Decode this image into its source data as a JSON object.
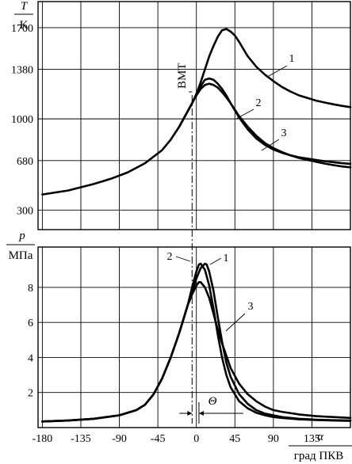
{
  "chart_data": [
    {
      "type": "line",
      "ylabel_top": "T",
      "ylabel_bottom": "K",
      "ylim": [
        150,
        1900
      ],
      "xlim": [
        -185,
        180
      ],
      "yticks": [
        300,
        680,
        1000,
        1380,
        1700
      ],
      "ytick_labels": [
        "300",
        "680",
        "1000",
        "1380",
        "1700"
      ],
      "grid": true,
      "annotation": "ВМТ",
      "series": [
        {
          "name": "1",
          "x": [
            -180,
            -150,
            -120,
            -100,
            -80,
            -60,
            -40,
            -30,
            -20,
            -10,
            -5,
            0,
            5,
            10,
            15,
            20,
            25,
            30,
            35,
            40,
            45,
            50,
            60,
            70,
            80,
            90,
            100,
            110,
            120,
            130,
            140,
            150,
            160,
            170,
            180
          ],
          "y": [
            420,
            450,
            500,
            540,
            590,
            660,
            760,
            840,
            940,
            1060,
            1120,
            1190,
            1280,
            1380,
            1480,
            1560,
            1630,
            1680,
            1690,
            1670,
            1640,
            1590,
            1480,
            1400,
            1340,
            1290,
            1245,
            1210,
            1180,
            1160,
            1140,
            1125,
            1112,
            1100,
            1090
          ]
        },
        {
          "name": "2",
          "x": [
            -20,
            -10,
            -5,
            0,
            5,
            10,
            15,
            20,
            25,
            30,
            35,
            40,
            50,
            60,
            70,
            80,
            90,
            100,
            110,
            120,
            130,
            140,
            150,
            160,
            170,
            180
          ],
          "y": [
            940,
            1060,
            1120,
            1190,
            1250,
            1300,
            1310,
            1300,
            1270,
            1230,
            1180,
            1120,
            1010,
            920,
            850,
            800,
            765,
            740,
            720,
            705,
            695,
            685,
            675,
            668,
            660,
            655
          ]
        },
        {
          "name": "3",
          "x": [
            -20,
            -10,
            -5,
            0,
            5,
            10,
            15,
            20,
            25,
            30,
            35,
            40,
            50,
            60,
            70,
            80,
            90,
            100,
            110,
            120,
            130,
            140,
            150,
            160,
            170,
            180
          ],
          "y": [
            940,
            1060,
            1120,
            1180,
            1230,
            1260,
            1270,
            1260,
            1240,
            1205,
            1165,
            1120,
            1020,
            940,
            870,
            815,
            775,
            745,
            720,
            700,
            685,
            670,
            657,
            645,
            635,
            628
          ]
        }
      ],
      "series_labels": [
        "1",
        "2",
        "3"
      ]
    },
    {
      "type": "line",
      "ylabel_top": "p",
      "ylabel_bottom": "МПа",
      "xlabel_top": "α",
      "xlabel_bottom": "град ПКВ",
      "ylim": [
        0,
        10.3
      ],
      "xlim": [
        -185,
        180
      ],
      "yticks": [
        2,
        4,
        6,
        8
      ],
      "ytick_labels": [
        "2",
        "4",
        "6",
        "8"
      ],
      "xticks": [
        -180,
        -135,
        -90,
        -45,
        0,
        45,
        90,
        135
      ],
      "xtick_labels": [
        "-180",
        "-135",
        "-90",
        "-45",
        "0",
        "45",
        "90",
        "135"
      ],
      "grid": true,
      "annotation": "Θ",
      "series": [
        {
          "name": "1",
          "x": [
            -180,
            -150,
            -120,
            -90,
            -70,
            -60,
            -50,
            -40,
            -30,
            -20,
            -15,
            -10,
            -5,
            0,
            5,
            10,
            12,
            15,
            20,
            25,
            30,
            35,
            40,
            50,
            60,
            70,
            80,
            90,
            100,
            120,
            140,
            160,
            180
          ],
          "y": [
            0.35,
            0.4,
            0.5,
            0.7,
            1.0,
            1.3,
            1.9,
            2.8,
            4.0,
            5.4,
            6.2,
            7.0,
            7.7,
            8.5,
            9.1,
            9.35,
            9.3,
            8.9,
            7.8,
            6.3,
            4.9,
            3.7,
            2.9,
            1.9,
            1.35,
            1.0,
            0.8,
            0.7,
            0.6,
            0.5,
            0.45,
            0.42,
            0.4
          ]
        },
        {
          "name": "2",
          "x": [
            -180,
            -150,
            -120,
            -90,
            -70,
            -60,
            -50,
            -40,
            -30,
            -20,
            -15,
            -10,
            -5,
            0,
            3,
            5,
            10,
            15,
            20,
            25,
            30,
            35,
            40,
            50,
            60,
            70,
            80,
            90,
            100,
            120,
            140,
            160,
            180
          ],
          "y": [
            0.35,
            0.4,
            0.5,
            0.7,
            1.0,
            1.3,
            1.9,
            2.8,
            4.0,
            5.4,
            6.2,
            7.0,
            8.0,
            8.9,
            9.3,
            9.35,
            9.0,
            8.1,
            6.8,
            5.3,
            4.0,
            3.0,
            2.3,
            1.5,
            1.1,
            0.85,
            0.7,
            0.6,
            0.55,
            0.47,
            0.43,
            0.4,
            0.38
          ]
        },
        {
          "name": "3",
          "x": [
            -180,
            -150,
            -120,
            -90,
            -70,
            -60,
            -50,
            -40,
            -30,
            -20,
            -15,
            -10,
            -5,
            0,
            3,
            5,
            10,
            15,
            20,
            25,
            30,
            35,
            40,
            50,
            60,
            70,
            80,
            90,
            100,
            120,
            140,
            160,
            180
          ],
          "y": [
            0.35,
            0.4,
            0.5,
            0.7,
            1.0,
            1.3,
            1.9,
            2.8,
            4.0,
            5.4,
            6.2,
            7.0,
            7.6,
            8.1,
            8.3,
            8.3,
            8.0,
            7.4,
            6.5,
            5.6,
            4.8,
            4.1,
            3.4,
            2.5,
            1.9,
            1.5,
            1.2,
            1.0,
            0.9,
            0.75,
            0.65,
            0.6,
            0.55
          ]
        }
      ],
      "series_labels": [
        "1",
        "2",
        "3"
      ]
    }
  ]
}
